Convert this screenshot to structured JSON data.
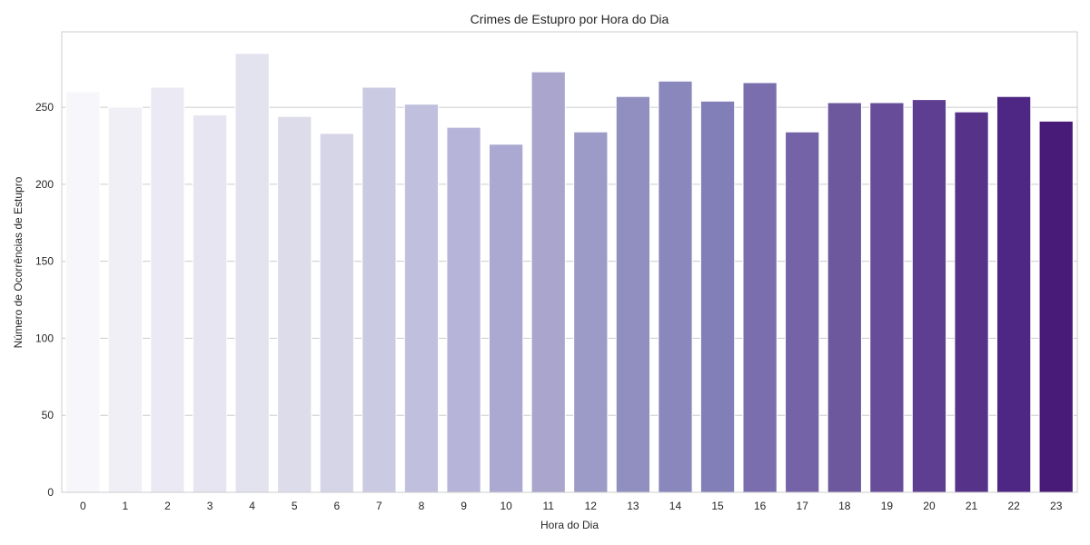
{
  "chart_data": {
    "type": "bar",
    "title": "Crimes de Estupro por Hora do Dia",
    "xlabel": "Hora do Dia",
    "ylabel": "Número de Ocorrências de Estupro",
    "categories": [
      "0",
      "1",
      "2",
      "3",
      "4",
      "5",
      "6",
      "7",
      "8",
      "9",
      "10",
      "11",
      "12",
      "13",
      "14",
      "15",
      "16",
      "17",
      "18",
      "19",
      "20",
      "21",
      "22",
      "23"
    ],
    "values": [
      260,
      250,
      263,
      245,
      285,
      244,
      233,
      263,
      252,
      237,
      226,
      273,
      234,
      257,
      267,
      254,
      266,
      234,
      253,
      253,
      255,
      247,
      257,
      241
    ],
    "yticks": [
      0,
      50,
      100,
      150,
      200,
      250
    ],
    "ylim": [
      0,
      299
    ],
    "grid": "y",
    "legend": "none",
    "palette": "Purples",
    "colors": [
      "#f7f6fa",
      "#f1eff6",
      "#ebe9f3",
      "#e6e5f1",
      "#e3e2ef",
      "#dcdcea",
      "#d5d5e7",
      "#cbcae3",
      "#c0c0de",
      "#b6b5d9",
      "#aba8d1",
      "#a9a5cc",
      "#9c9ac6",
      "#918fc0",
      "#8987bc",
      "#817eb8",
      "#7a6eaf",
      "#7463a6",
      "#6d589e",
      "#674c99",
      "#5e3e90",
      "#563389",
      "#4e2683",
      "#481b78"
    ],
    "background": "#ffffff",
    "grid_color": "#cccccc",
    "frame_color": "#cccccc",
    "bar_edge": "#ffffff"
  }
}
